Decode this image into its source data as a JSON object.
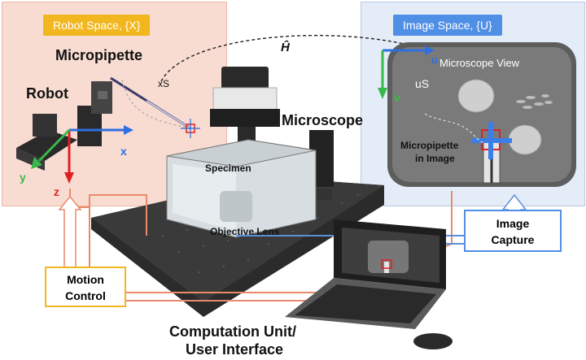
{
  "panels": {
    "robot_space": "Robot Space, {X}",
    "image_space": "Image Space, {U}"
  },
  "labels": {
    "micropipette": "Micropipette",
    "robot": "Robot",
    "microscope": "Microscope",
    "specimen": "Specimen",
    "objective_lens": "Objective Lens",
    "xs": "xS",
    "h_hat": "Ĥ",
    "axis_x": "x",
    "axis_y": "y",
    "axis_z": "z",
    "microscope_view": "Microscope View",
    "axis_u": "u",
    "axis_v": "v",
    "us": "uS",
    "micropipette_in_image_1": "Micropipette",
    "micropipette_in_image_2": "in Image",
    "computation_1": "Computation Unit/",
    "computation_2": "User Interface"
  },
  "boxes": {
    "motion_1": "Motion",
    "motion_2": "Control",
    "capture_1": "Image",
    "capture_2": "Capture"
  },
  "colors": {
    "robot_panel": "#f8dcd2",
    "image_panel": "#e4ecf8",
    "robot_tag": "#f2b71f",
    "image_tag": "#4f8fe5",
    "axis_x": "#2f6fe0",
    "axis_y": "#39b94a",
    "axis_z": "#e02020",
    "orange_link": "#e98a6a",
    "blue_link": "#5d8fd8"
  }
}
